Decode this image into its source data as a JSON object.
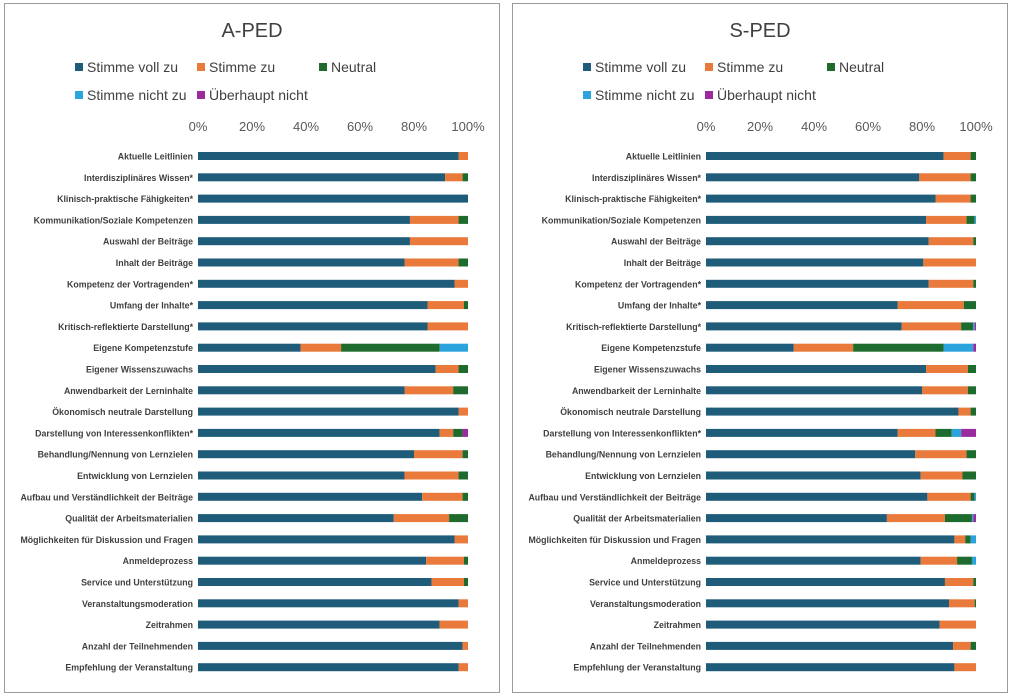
{
  "chart_data": [
    {
      "type": "bar",
      "orientation": "horizontal",
      "stacked": "100%",
      "title": "A-PED",
      "xlim": [
        0,
        100
      ],
      "x_ticks": [
        "0%",
        "20%",
        "40%",
        "60%",
        "80%",
        "100%"
      ],
      "legend_placement": "top",
      "categories": [
        "Aktuelle Leitlinien",
        "Interdisziplinäres Wissen*",
        "Klinisch-praktische Fähigkeiten*",
        "Kommunikation/Soziale Kompetenzen",
        "Auswahl der Beiträge",
        "Inhalt der Beiträge",
        "Kompetenz der Vortragenden*",
        "Umfang der Inhalte*",
        "Kritisch-reflektierte Darstellung*",
        "Eigene Kompetenzstufe",
        "Eigener Wissenszuwachs",
        "Anwendbarkeit der Lerninhalte",
        "Ökonomisch neutrale Darstellung",
        "Darstellung von Interessenkonflikten*",
        "Behandlung/Nennung von Lernzielen",
        "Entwicklung von Lernzielen",
        "Aufbau und Verständlichkeit der Beiträge",
        "Qualität der Arbeitsmaterialien",
        "Möglichkeiten für Diskussion und Fragen",
        "Anmeldeprozess",
        "Service und Unterstützung",
        "Veranstaltungsmoderation",
        "Zeitrahmen",
        "Anzahl der Teilnehmenden",
        "Empfehlung der Veranstaltung"
      ],
      "series": [
        {
          "name": "Stimme voll zu",
          "color": "#1f5c7a",
          "values": [
            96.5,
            91.5,
            100,
            78.5,
            78.5,
            76.5,
            95,
            85,
            85,
            38,
            88,
            76.5,
            96.5,
            89.5,
            80,
            76.5,
            83,
            72.5,
            95,
            84.5,
            86.5,
            96.5,
            89.5,
            98,
            96.5
          ]
        },
        {
          "name": "Stimme zu",
          "color": "#e97a3b",
          "values": [
            3.5,
            6.5,
            0,
            18,
            21.5,
            20,
            5,
            13.5,
            15,
            15,
            8.5,
            18,
            3.5,
            5,
            18,
            20,
            15,
            20.5,
            5,
            14,
            12,
            3.5,
            10.5,
            2,
            3.5
          ]
        },
        {
          "name": "Neutral",
          "color": "#1e6b2e",
          "values": [
            0,
            2,
            0,
            3.5,
            0,
            3.5,
            0,
            1.5,
            0,
            36.5,
            3.5,
            5.5,
            0,
            3.5,
            2,
            3.5,
            2,
            7,
            0,
            1.5,
            1.5,
            0,
            0,
            0,
            0
          ]
        },
        {
          "name": "Stimme nicht zu",
          "color": "#2ba3dc",
          "values": [
            0,
            0,
            0,
            0,
            0,
            0,
            0,
            0,
            0,
            10.5,
            0,
            0,
            0,
            0,
            0,
            0,
            0,
            0,
            0,
            0,
            0,
            0,
            0,
            0,
            0
          ]
        },
        {
          "name": "Überhaupt nicht",
          "color": "#9b2a9e",
          "values": [
            0,
            0,
            0,
            0,
            0,
            0,
            0,
            0,
            0,
            0,
            0,
            0,
            0,
            2,
            0,
            0,
            0,
            0,
            0,
            0,
            0,
            0,
            0,
            0,
            0
          ]
        }
      ]
    },
    {
      "type": "bar",
      "orientation": "horizontal",
      "stacked": "100%",
      "title": "S-PED",
      "xlim": [
        0,
        100
      ],
      "x_ticks": [
        "0%",
        "20%",
        "40%",
        "60%",
        "80%",
        "100%"
      ],
      "legend_placement": "top",
      "categories": [
        "Aktuelle Leitlinien",
        "Interdisziplinäres Wissen*",
        "Klinisch-praktische Fähigkeiten*",
        "Kommunikation/Soziale Kompetenzen",
        "Auswahl der Beiträge",
        "Inhalt der Beiträge",
        "Kompetenz der Vortragenden*",
        "Umfang der Inhalte*",
        "Kritisch-reflektierte Darstellung*",
        "Eigene Kompetenzstufe",
        "Eigener Wissenszuwachs",
        "Anwendbarkeit der Lerninhalte",
        "Ökonomisch neutrale Darstellung",
        "Darstellung von Interessenkonflikten*",
        "Behandlung/Nennung von Lernzielen",
        "Entwicklung von Lernzielen",
        "Aufbau und Verständlichkeit der Beiträge",
        "Qualität der Arbeitsmaterialien",
        "Möglichkeiten für Diskussion und Fragen",
        "Anmeldeprozess",
        "Service und Unterstützung",
        "Veranstaltungsmoderation",
        "Zeitrahmen",
        "Anzahl der Teilnehmenden",
        "Empfehlung der Veranstaltung"
      ],
      "series": [
        {
          "name": "Stimme voll zu",
          "color": "#1f5c7a",
          "values": [
            88,
            79,
            85,
            81.5,
            82.5,
            80.5,
            82.5,
            71,
            72.5,
            32.5,
            81.5,
            80,
            93.5,
            71,
            77.5,
            79.5,
            82,
            67,
            92,
            79.5,
            88.5,
            90,
            86.5,
            91.5,
            92
          ]
        },
        {
          "name": "Stimme zu",
          "color": "#e97a3b",
          "values": [
            10,
            19,
            13,
            15,
            16.5,
            19.5,
            16.5,
            24.5,
            22,
            22,
            15.5,
            17,
            4.5,
            14,
            19,
            15.5,
            16,
            21.5,
            4,
            13.5,
            10.5,
            9.5,
            13.5,
            6.5,
            8
          ]
        },
        {
          "name": "Neutral",
          "color": "#1e6b2e",
          "values": [
            2,
            2,
            2,
            3,
            1,
            0,
            1,
            4.5,
            4.5,
            33.5,
            3,
            3,
            2,
            6,
            3.5,
            5,
            1.5,
            10,
            2,
            5.5,
            1,
            0.5,
            0,
            2,
            0
          ]
        },
        {
          "name": "Stimme nicht zu",
          "color": "#2ba3dc",
          "values": [
            0,
            0,
            0,
            0.5,
            0,
            0,
            0,
            0,
            0.5,
            11,
            0,
            0,
            0,
            3.5,
            0,
            0,
            0.5,
            0.5,
            2,
            1.5,
            0,
            0,
            0,
            0,
            0
          ]
        },
        {
          "name": "Überhaupt nicht",
          "color": "#9b2a9e",
          "values": [
            0,
            0,
            0,
            0,
            0,
            0,
            0,
            0,
            0.5,
            1,
            0,
            0,
            0,
            5.5,
            0,
            0,
            0,
            1,
            0,
            0,
            0,
            0,
            0,
            0,
            0
          ]
        }
      ]
    }
  ]
}
